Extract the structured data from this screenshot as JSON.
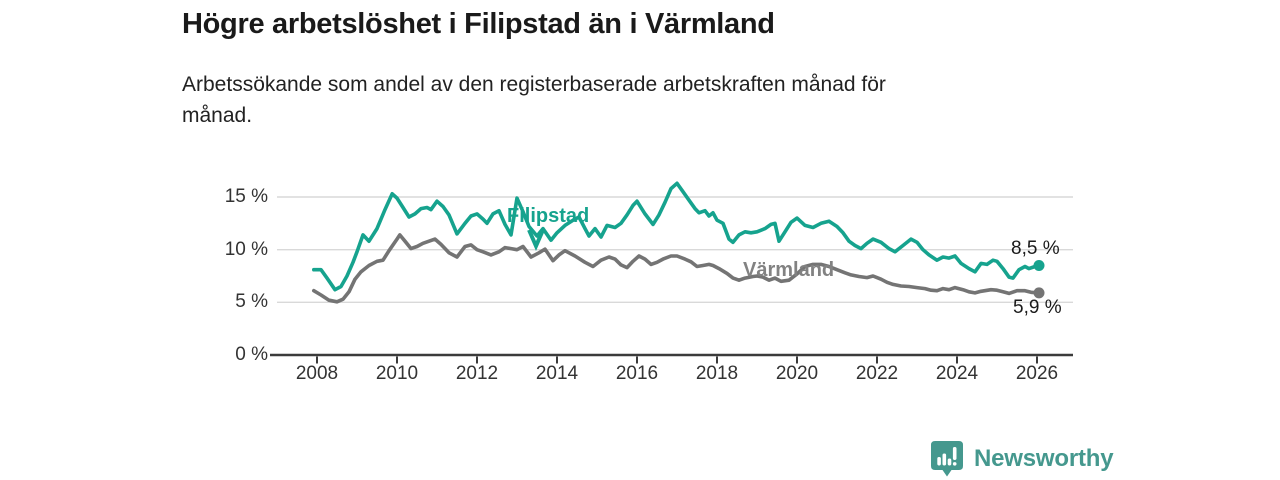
{
  "header": {
    "title": "Högre arbetslöshet i Filipstad än i Värmland",
    "subtitle_lines": [
      "Arbetssökande som andel av den registerbaserade arbetskraften månad för",
      "månad."
    ]
  },
  "chart_data": {
    "type": "line",
    "title": "Högre arbetslöshet i Filipstad än i Värmland",
    "subtitle": "Arbetssökande som andel av den registerbaserade arbetskraften månad för månad.",
    "unit": "%",
    "x_ticks": [
      2008,
      2010,
      2012,
      2014,
      2016,
      2018,
      2020,
      2022,
      2024,
      2026
    ],
    "y_ticks": [
      0,
      5,
      10,
      15
    ],
    "y_tick_suffix": " %",
    "ylim": [
      0,
      16.5
    ],
    "xlim": [
      2007.9,
      2026.1
    ],
    "grid": true,
    "colors": {
      "grid": "#d9d9d9",
      "axis": "#3b3b3b",
      "tick_text": "#333333"
    },
    "series": [
      {
        "id": "varmland",
        "name": "Värmland",
        "color": "#747474",
        "end_label": "5,9 %",
        "end_value": 5.9,
        "points": [
          [
            2007.92,
            6.1
          ],
          [
            2008.1,
            5.7
          ],
          [
            2008.3,
            5.2
          ],
          [
            2008.5,
            5.05
          ],
          [
            2008.65,
            5.3
          ],
          [
            2008.8,
            6.0
          ],
          [
            2008.95,
            7.2
          ],
          [
            2009.1,
            7.9
          ],
          [
            2009.3,
            8.5
          ],
          [
            2009.5,
            8.9
          ],
          [
            2009.65,
            9.0
          ],
          [
            2009.8,
            9.9
          ],
          [
            2010.0,
            11.0
          ],
          [
            2010.07,
            11.4
          ],
          [
            2010.2,
            10.8
          ],
          [
            2010.35,
            10.1
          ],
          [
            2010.5,
            10.3
          ],
          [
            2010.65,
            10.6
          ],
          [
            2010.8,
            10.8
          ],
          [
            2010.95,
            11.0
          ],
          [
            2011.1,
            10.5
          ],
          [
            2011.3,
            9.7
          ],
          [
            2011.5,
            9.3
          ],
          [
            2011.7,
            10.3
          ],
          [
            2011.85,
            10.45
          ],
          [
            2012.0,
            10.0
          ],
          [
            2012.15,
            9.8
          ],
          [
            2012.35,
            9.5
          ],
          [
            2012.55,
            9.8
          ],
          [
            2012.7,
            10.2
          ],
          [
            2012.85,
            10.1
          ],
          [
            2013.0,
            10.0
          ],
          [
            2013.15,
            10.3
          ],
          [
            2013.35,
            9.3
          ],
          [
            2013.55,
            9.7
          ],
          [
            2013.7,
            10.05
          ],
          [
            2013.9,
            8.95
          ],
          [
            2014.05,
            9.5
          ],
          [
            2014.2,
            9.9
          ],
          [
            2014.45,
            9.4
          ],
          [
            2014.7,
            8.8
          ],
          [
            2014.9,
            8.4
          ],
          [
            2015.1,
            9.0
          ],
          [
            2015.3,
            9.3
          ],
          [
            2015.45,
            9.1
          ],
          [
            2015.6,
            8.55
          ],
          [
            2015.75,
            8.3
          ],
          [
            2015.9,
            8.9
          ],
          [
            2016.05,
            9.4
          ],
          [
            2016.2,
            9.1
          ],
          [
            2016.35,
            8.6
          ],
          [
            2016.5,
            8.8
          ],
          [
            2016.65,
            9.1
          ],
          [
            2016.85,
            9.4
          ],
          [
            2017.0,
            9.4
          ],
          [
            2017.2,
            9.1
          ],
          [
            2017.35,
            8.85
          ],
          [
            2017.5,
            8.4
          ],
          [
            2017.65,
            8.5
          ],
          [
            2017.8,
            8.6
          ],
          [
            2017.9,
            8.5
          ],
          [
            2018.05,
            8.2
          ],
          [
            2018.25,
            7.75
          ],
          [
            2018.4,
            7.3
          ],
          [
            2018.55,
            7.1
          ],
          [
            2018.7,
            7.3
          ],
          [
            2018.9,
            7.45
          ],
          [
            2019.0,
            7.5
          ],
          [
            2019.15,
            7.4
          ],
          [
            2019.3,
            7.1
          ],
          [
            2019.45,
            7.3
          ],
          [
            2019.6,
            7.0
          ],
          [
            2019.8,
            7.1
          ],
          [
            2020.0,
            7.7
          ],
          [
            2020.2,
            8.4
          ],
          [
            2020.4,
            8.6
          ],
          [
            2020.6,
            8.6
          ],
          [
            2020.8,
            8.4
          ],
          [
            2021.0,
            8.1
          ],
          [
            2021.2,
            7.8
          ],
          [
            2021.35,
            7.6
          ],
          [
            2021.55,
            7.45
          ],
          [
            2021.75,
            7.35
          ],
          [
            2021.9,
            7.5
          ],
          [
            2022.1,
            7.2
          ],
          [
            2022.25,
            6.9
          ],
          [
            2022.4,
            6.7
          ],
          [
            2022.6,
            6.55
          ],
          [
            2022.8,
            6.5
          ],
          [
            2023.0,
            6.4
          ],
          [
            2023.2,
            6.3
          ],
          [
            2023.35,
            6.15
          ],
          [
            2023.5,
            6.1
          ],
          [
            2023.65,
            6.3
          ],
          [
            2023.8,
            6.2
          ],
          [
            2023.95,
            6.4
          ],
          [
            2024.15,
            6.2
          ],
          [
            2024.3,
            6.0
          ],
          [
            2024.45,
            5.9
          ],
          [
            2024.6,
            6.05
          ],
          [
            2024.85,
            6.2
          ],
          [
            2025.0,
            6.15
          ],
          [
            2025.15,
            6.0
          ],
          [
            2025.3,
            5.85
          ],
          [
            2025.5,
            6.1
          ],
          [
            2025.7,
            6.1
          ],
          [
            2025.85,
            5.95
          ],
          [
            2026.05,
            5.9
          ]
        ]
      },
      {
        "id": "filipstad",
        "name": "Filipstad",
        "color": "#16a38e",
        "end_label": "8,5 %",
        "end_value": 8.5,
        "points": [
          [
            2007.92,
            8.1
          ],
          [
            2008.1,
            8.1
          ],
          [
            2008.25,
            7.3
          ],
          [
            2008.45,
            6.2
          ],
          [
            2008.6,
            6.5
          ],
          [
            2008.75,
            7.5
          ],
          [
            2008.9,
            8.8
          ],
          [
            2009.0,
            9.8
          ],
          [
            2009.15,
            11.4
          ],
          [
            2009.3,
            10.8
          ],
          [
            2009.5,
            12.0
          ],
          [
            2009.7,
            13.8
          ],
          [
            2009.88,
            15.3
          ],
          [
            2010.0,
            14.9
          ],
          [
            2010.15,
            14.0
          ],
          [
            2010.3,
            13.1
          ],
          [
            2010.45,
            13.4
          ],
          [
            2010.6,
            13.9
          ],
          [
            2010.75,
            14.0
          ],
          [
            2010.85,
            13.8
          ],
          [
            2011.0,
            14.6
          ],
          [
            2011.15,
            14.1
          ],
          [
            2011.3,
            13.3
          ],
          [
            2011.5,
            11.5
          ],
          [
            2011.7,
            12.5
          ],
          [
            2011.85,
            13.2
          ],
          [
            2012.0,
            13.4
          ],
          [
            2012.15,
            12.9
          ],
          [
            2012.25,
            12.5
          ],
          [
            2012.4,
            13.4
          ],
          [
            2012.55,
            13.7
          ],
          [
            2012.7,
            12.4
          ],
          [
            2012.85,
            11.4
          ],
          [
            2013.0,
            14.9
          ],
          [
            2013.15,
            13.6
          ],
          [
            2013.3,
            12.2
          ],
          [
            2013.5,
            11.3
          ],
          [
            2013.65,
            12.0
          ],
          [
            2013.85,
            10.9
          ],
          [
            2014.0,
            11.6
          ],
          [
            2014.2,
            12.3
          ],
          [
            2014.4,
            12.8
          ],
          [
            2014.55,
            13.1
          ],
          [
            2014.7,
            12.0
          ],
          [
            2014.8,
            11.3
          ],
          [
            2014.95,
            12.0
          ],
          [
            2015.1,
            11.2
          ],
          [
            2015.25,
            12.3
          ],
          [
            2015.45,
            12.1
          ],
          [
            2015.6,
            12.5
          ],
          [
            2015.75,
            13.3
          ],
          [
            2015.9,
            14.2
          ],
          [
            2016.0,
            14.6
          ],
          [
            2016.2,
            13.4
          ],
          [
            2016.4,
            12.4
          ],
          [
            2016.55,
            13.3
          ],
          [
            2016.7,
            14.5
          ],
          [
            2016.85,
            15.8
          ],
          [
            2017.0,
            16.3
          ],
          [
            2017.15,
            15.5
          ],
          [
            2017.3,
            14.7
          ],
          [
            2017.45,
            13.9
          ],
          [
            2017.55,
            13.5
          ],
          [
            2017.7,
            13.7
          ],
          [
            2017.8,
            13.2
          ],
          [
            2017.9,
            13.5
          ],
          [
            2018.0,
            12.8
          ],
          [
            2018.15,
            12.5
          ],
          [
            2018.3,
            11.0
          ],
          [
            2018.4,
            10.7
          ],
          [
            2018.55,
            11.4
          ],
          [
            2018.7,
            11.7
          ],
          [
            2018.85,
            11.6
          ],
          [
            2019.0,
            11.7
          ],
          [
            2019.2,
            12.0
          ],
          [
            2019.35,
            12.4
          ],
          [
            2019.45,
            12.5
          ],
          [
            2019.55,
            10.8
          ],
          [
            2019.7,
            11.7
          ],
          [
            2019.85,
            12.6
          ],
          [
            2020.0,
            13.0
          ],
          [
            2020.2,
            12.3
          ],
          [
            2020.4,
            12.1
          ],
          [
            2020.6,
            12.5
          ],
          [
            2020.8,
            12.7
          ],
          [
            2021.0,
            12.2
          ],
          [
            2021.15,
            11.6
          ],
          [
            2021.3,
            10.8
          ],
          [
            2021.45,
            10.4
          ],
          [
            2021.6,
            10.1
          ],
          [
            2021.75,
            10.6
          ],
          [
            2021.9,
            11.0
          ],
          [
            2022.1,
            10.7
          ],
          [
            2022.3,
            10.1
          ],
          [
            2022.45,
            9.8
          ],
          [
            2022.65,
            10.4
          ],
          [
            2022.85,
            11.0
          ],
          [
            2023.0,
            10.7
          ],
          [
            2023.15,
            10.0
          ],
          [
            2023.3,
            9.5
          ],
          [
            2023.5,
            9.0
          ],
          [
            2023.65,
            9.3
          ],
          [
            2023.8,
            9.2
          ],
          [
            2023.95,
            9.4
          ],
          [
            2024.1,
            8.7
          ],
          [
            2024.3,
            8.2
          ],
          [
            2024.45,
            7.9
          ],
          [
            2024.6,
            8.7
          ],
          [
            2024.75,
            8.6
          ],
          [
            2024.9,
            9.0
          ],
          [
            2025.0,
            8.9
          ],
          [
            2025.15,
            8.2
          ],
          [
            2025.3,
            7.4
          ],
          [
            2025.4,
            7.3
          ],
          [
            2025.55,
            8.1
          ],
          [
            2025.7,
            8.4
          ],
          [
            2025.8,
            8.2
          ],
          [
            2025.95,
            8.4
          ],
          [
            2026.05,
            8.5
          ]
        ]
      }
    ],
    "annotations": {
      "filipstad_label": "Filipstad",
      "varmland_label": "Värmland",
      "end_label_top": "8,5 %",
      "end_label_bottom": "5,9 %"
    },
    "legend_position": "inline-labels"
  },
  "branding": {
    "logo_text": "Newsworthy",
    "logo_color": "#45988e"
  }
}
